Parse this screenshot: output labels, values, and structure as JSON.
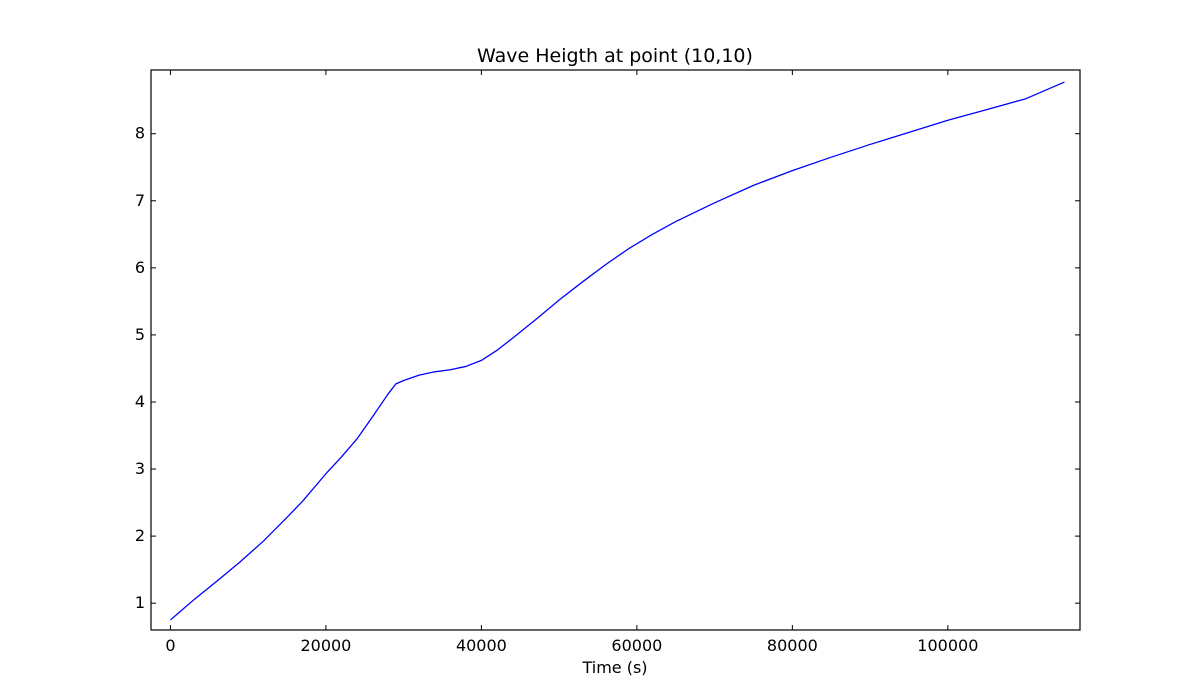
{
  "chart_data": {
    "type": "line",
    "title": "Wave Heigth at point (10,10)",
    "xlabel": "Time (s)",
    "ylabel": "",
    "xlim": [
      -2500,
      117000
    ],
    "ylim": [
      0.6,
      8.95
    ],
    "xticks": [
      0,
      20000,
      40000,
      60000,
      80000,
      100000
    ],
    "xtick_labels": [
      "0",
      "20000",
      "40000",
      "60000",
      "80000",
      "100000"
    ],
    "yticks": [
      1,
      2,
      3,
      4,
      5,
      6,
      7,
      8
    ],
    "ytick_labels": [
      "1",
      "2",
      "3",
      "4",
      "5",
      "6",
      "7",
      "8"
    ],
    "grid": false,
    "legend": "none",
    "series": [
      {
        "color": "#0000ff",
        "x": [
          0,
          1000,
          3000,
          6000,
          9000,
          12000,
          15000,
          17000,
          20000,
          22000,
          24000,
          26000,
          28000,
          29000,
          30000,
          32000,
          34000,
          36000,
          38000,
          40000,
          42000,
          44000,
          47000,
          50000,
          53000,
          56000,
          59000,
          62000,
          65000,
          70000,
          75000,
          80000,
          85000,
          90000,
          95000,
          100000,
          105000,
          110000,
          115000
        ],
        "y": [
          0.75,
          0.85,
          1.05,
          1.33,
          1.62,
          1.93,
          2.28,
          2.52,
          2.93,
          3.18,
          3.45,
          3.78,
          4.12,
          4.27,
          4.32,
          4.4,
          4.45,
          4.48,
          4.53,
          4.62,
          4.77,
          4.95,
          5.23,
          5.52,
          5.79,
          6.05,
          6.29,
          6.5,
          6.69,
          6.97,
          7.23,
          7.45,
          7.65,
          7.84,
          8.02,
          8.2,
          8.36,
          8.52,
          8.77
        ]
      }
    ]
  }
}
